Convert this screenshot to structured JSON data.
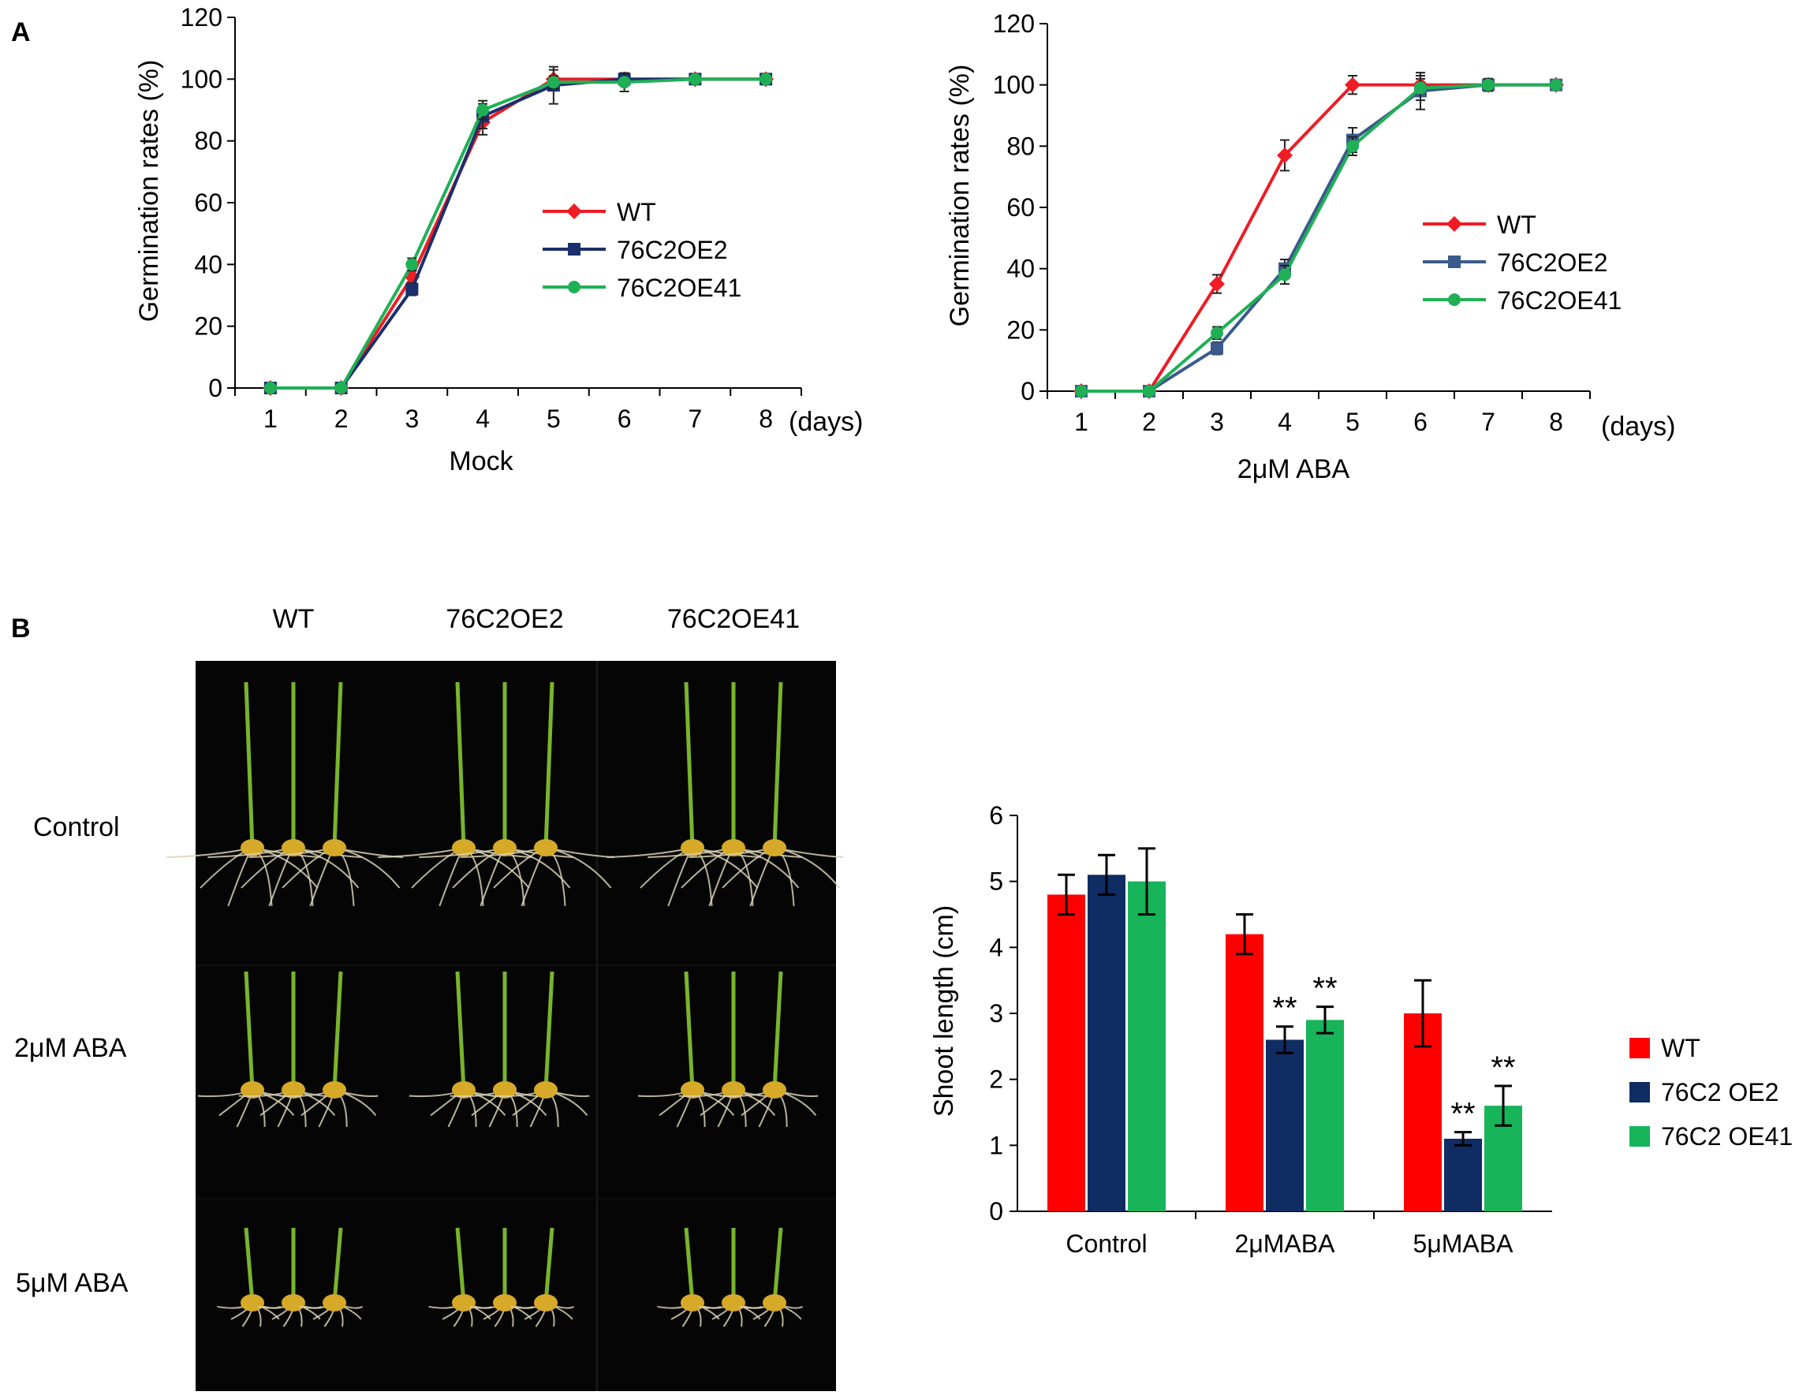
{
  "panels": {
    "A": {
      "label": "A"
    },
    "B": {
      "label": "B"
    }
  },
  "colors": {
    "wt": "#ee1c25",
    "oe2": "#1a2f6b",
    "oe41": "#1fb055",
    "bar_wt": "#ff0000",
    "bar_oe2": "#0f2c63",
    "bar_oe41": "#17b45a",
    "photo_bg": "#050505"
  },
  "photo": {
    "column_labels": [
      "WT",
      "76C2OE2",
      "76C2OE41"
    ],
    "row_labels": [
      "Control",
      "2μM ABA",
      "5μM ABA"
    ]
  },
  "chart_data": [
    {
      "type": "line",
      "ylabel": "Germination rates (%)",
      "xlabel": "Mock",
      "xunit": "(days)",
      "x": [
        1,
        2,
        3,
        4,
        5,
        6,
        7,
        8
      ],
      "ylim": [
        0,
        120
      ],
      "yticks": [
        0,
        20,
        40,
        60,
        80,
        100,
        120
      ],
      "legend_position": "center-right",
      "series": [
        {
          "name": "WT",
          "color": "#ee1c25",
          "marker": "diamond",
          "values": [
            0,
            0,
            36,
            86,
            100,
            100,
            100,
            100
          ],
          "errors": [
            0,
            0,
            2,
            4,
            3,
            2,
            1,
            1
          ]
        },
        {
          "name": "76C2OE2",
          "color": "#1a2f6b",
          "marker": "square",
          "values": [
            0,
            0,
            32,
            88,
            98,
            100,
            100,
            100
          ],
          "errors": [
            0,
            0,
            2,
            4,
            6,
            2,
            1,
            1
          ]
        },
        {
          "name": "76C2OE41",
          "color": "#1fb055",
          "marker": "circle",
          "values": [
            0,
            0,
            40,
            90,
            99,
            99,
            100,
            100
          ],
          "errors": [
            0,
            0,
            2,
            3,
            2,
            3,
            1,
            1
          ]
        }
      ]
    },
    {
      "type": "line",
      "ylabel": "Germination rates (%)",
      "xlabel": "2μM ABA",
      "xunit": "(days)",
      "x": [
        1,
        2,
        3,
        4,
        5,
        6,
        7,
        8
      ],
      "ylim": [
        0,
        120
      ],
      "yticks": [
        0,
        20,
        40,
        60,
        80,
        100,
        120
      ],
      "legend_position": "center-right",
      "series": [
        {
          "name": "WT",
          "color": "#ee1c25",
          "marker": "diamond",
          "values": [
            0,
            0,
            35,
            77,
            100,
            100,
            100,
            100
          ],
          "errors": [
            0,
            0,
            3,
            5,
            3,
            2,
            2,
            1
          ]
        },
        {
          "name": "76C2OE2",
          "color": "#3a5a8c",
          "marker": "square",
          "values": [
            0,
            0,
            14,
            40,
            82,
            98,
            100,
            100
          ],
          "errors": [
            0,
            0,
            2,
            3,
            4,
            6,
            2,
            1
          ]
        },
        {
          "name": "76C2OE41",
          "color": "#1fb055",
          "marker": "circle",
          "values": [
            0,
            0,
            19,
            38,
            80,
            99,
            100,
            100
          ],
          "errors": [
            0,
            0,
            2,
            3,
            3,
            4,
            2,
            1
          ]
        }
      ]
    },
    {
      "type": "bar",
      "ylabel": "Shoot length (cm)",
      "categories": [
        "Control",
        "2μMABA",
        "5μMABA"
      ],
      "ylim": [
        0,
        6
      ],
      "yticks": [
        0,
        1,
        2,
        3,
        4,
        5,
        6
      ],
      "legend_position": "right",
      "series": [
        {
          "name": "WT",
          "color": "#ff0000",
          "values": [
            4.8,
            4.2,
            3.0
          ],
          "errors": [
            0.3,
            0.3,
            0.5
          ],
          "annotations": [
            "",
            "",
            ""
          ]
        },
        {
          "name": "76C2 OE2",
          "color": "#0f2c63",
          "values": [
            5.1,
            2.6,
            1.1
          ],
          "errors": [
            0.3,
            0.2,
            0.1
          ],
          "annotations": [
            "",
            "**",
            "**"
          ]
        },
        {
          "name": "76C2 OE41",
          "color": "#17b45a",
          "values": [
            5.0,
            2.9,
            1.6
          ],
          "errors": [
            0.5,
            0.2,
            0.3
          ],
          "annotations": [
            "",
            "**",
            "**"
          ]
        }
      ]
    }
  ]
}
